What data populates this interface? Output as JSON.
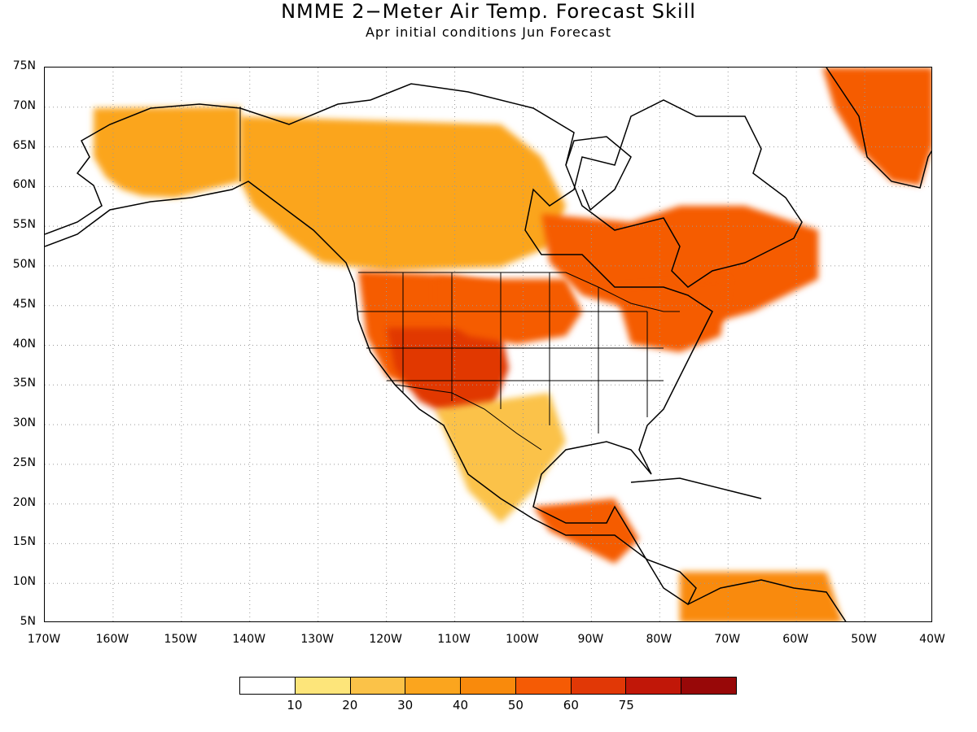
{
  "title": "NMME 2−Meter Air Temp. Forecast Skill",
  "subtitle": "Apr initial conditions  Jun Forecast",
  "map": {
    "lon_range": [
      -170,
      -40
    ],
    "lat_range": [
      5,
      75
    ],
    "lat_ticks": [
      "75N",
      "70N",
      "65N",
      "60N",
      "55N",
      "50N",
      "45N",
      "40N",
      "35N",
      "30N",
      "25N",
      "20N",
      "15N",
      "10N",
      "5N"
    ],
    "lon_ticks": [
      "170W",
      "160W",
      "150W",
      "140W",
      "130W",
      "120W",
      "110W",
      "100W",
      "90W",
      "80W",
      "70W",
      "60W",
      "50W",
      "40W"
    ],
    "grid": "dotted"
  },
  "colorbar": {
    "colors": [
      "#ffffff",
      "#fde57a",
      "#fbc248",
      "#fba51e",
      "#f98a0c",
      "#f55b05",
      "#e13806",
      "#c11708",
      "#980808"
    ],
    "labels": [
      "10",
      "20",
      "30",
      "40",
      "50",
      "60",
      "75"
    ]
  },
  "regions": [
    {
      "name": "alaska",
      "level": 3
    },
    {
      "name": "canada-west",
      "level": 3
    },
    {
      "name": "canada-east",
      "level": 5
    },
    {
      "name": "greenland",
      "level": 5
    },
    {
      "name": "us-west",
      "level": 5
    },
    {
      "name": "southwest",
      "level": 6
    },
    {
      "name": "great-plains",
      "level": 5
    },
    {
      "name": "southeast-us",
      "level": 0
    },
    {
      "name": "mexico",
      "level": 2
    },
    {
      "name": "central-america",
      "level": 5
    },
    {
      "name": "south-america-north",
      "level": 4
    }
  ]
}
